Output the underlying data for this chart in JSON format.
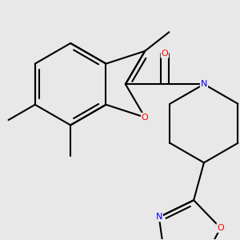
{
  "bg_color": "#e8e8e8",
  "bond_color": "#000000",
  "bond_width": 1.5,
  "atom_colors": {
    "O": "#ff0000",
    "N": "#0000ff",
    "C": "#000000"
  },
  "font_size": 8.0
}
